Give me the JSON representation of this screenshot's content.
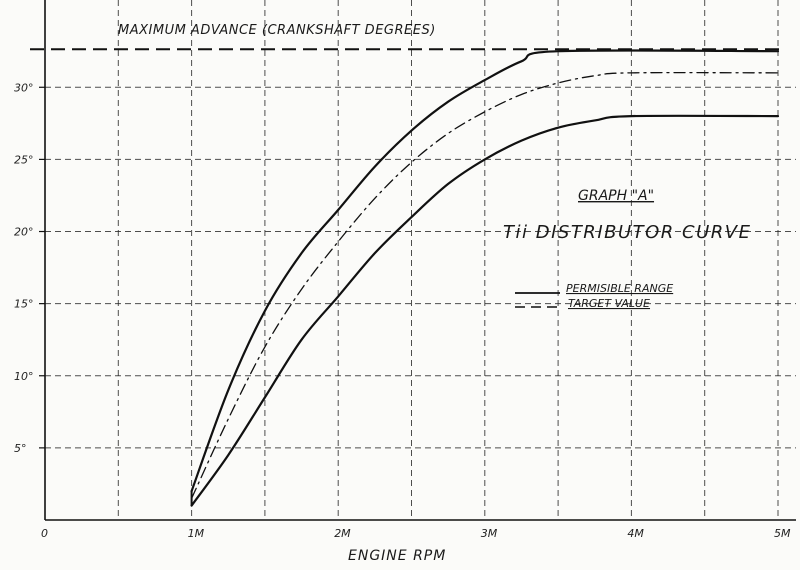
{
  "chart_data": {
    "type": "line",
    "title": "GRAPH \"A\"",
    "subtitle": "Tii DISTRIBUTOR CURVE",
    "xlabel": "ENGINE RPM",
    "ylabel": "",
    "x_unit": "RPM",
    "xlim": [
      0,
      5000
    ],
    "ylim": [
      0,
      33
    ],
    "x_ticks": [
      {
        "value": 0,
        "label": "0"
      },
      {
        "value": 1000,
        "label": "1M"
      },
      {
        "value": 2000,
        "label": "2M"
      },
      {
        "value": 3000,
        "label": "3M"
      },
      {
        "value": 4000,
        "label": "4M"
      },
      {
        "value": 5000,
        "label": "5M"
      }
    ],
    "y_ticks": [
      {
        "value": 5,
        "label": "5°"
      },
      {
        "value": 10,
        "label": "10°"
      },
      {
        "value": 15,
        "label": "15°"
      },
      {
        "value": 20,
        "label": "20°"
      },
      {
        "value": 25,
        "label": "25°"
      },
      {
        "value": 30,
        "label": "30°"
      }
    ],
    "grid": true,
    "legend_position": "right",
    "legend": [
      {
        "label": "PERMISIBLE RANGE",
        "style": "solid"
      },
      {
        "label": "TARGET VALUE",
        "style": "dashed"
      }
    ],
    "max_advance": {
      "label": "MAXIMUM ADVANCE (CRANKSHAFT DEGREES)",
      "value": 32.5
    },
    "series": [
      {
        "style": "solid",
        "x": [
          1000,
          1250,
          1500,
          1750,
          2000,
          2250,
          2500,
          2750,
          3000,
          3250,
          3500,
          5000
        ],
        "y": [
          2,
          9,
          14.5,
          18.5,
          21.5,
          24.5,
          27,
          29,
          30.5,
          31.8,
          32.5,
          32.5
        ]
      },
      {
        "style": "dashdot",
        "x": [
          1000,
          1250,
          1500,
          1750,
          2000,
          2250,
          2500,
          2750,
          3000,
          3250,
          3500,
          3750,
          4000,
          5000
        ],
        "y": [
          1.5,
          7,
          12,
          16,
          19.3,
          22.3,
          24.8,
          26.8,
          28.3,
          29.5,
          30.3,
          30.8,
          31,
          31
        ],
        "label": "TARGET VALUE"
      },
      {
        "style": "solid",
        "x": [
          1000,
          1250,
          1500,
          1750,
          2000,
          2250,
          2500,
          2750,
          3000,
          3250,
          3500,
          3750,
          4000,
          5000
        ],
        "y": [
          1,
          4.5,
          8.5,
          12.5,
          15.5,
          18.5,
          21,
          23.3,
          25,
          26.3,
          27.2,
          27.7,
          28,
          28
        ]
      }
    ]
  }
}
